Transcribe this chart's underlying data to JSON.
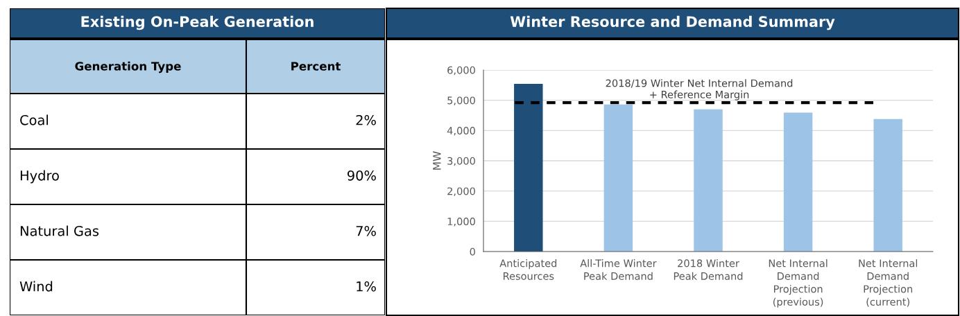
{
  "chart_data": [
    {
      "type": "other",
      "title": "Existing On-Peak Generation",
      "annotations": [
        "Generation Type",
        "Percent"
      ],
      "categories": [
        "Coal",
        "Hydro",
        "Natural Gas",
        "Wind"
      ],
      "values": [
        2,
        90,
        7,
        1
      ],
      "value_labels": [
        "2%",
        "90%",
        "7%",
        "1%"
      ]
    },
    {
      "type": "bar",
      "title": "Winter Resource and Demand Summary",
      "ylabel": "MW",
      "categories": [
        "Anticipated\nResources",
        "All-Time Winter\nPeak Demand",
        "2018 Winter\nPeak Demand",
        "Net Internal\nDemand\nProjection\n(previous)",
        "Net Internal\nDemand\nProjection\n(current)"
      ],
      "values": [
        5540,
        4860,
        4700,
        4590,
        4380
      ],
      "colors": [
        "#1f4e79",
        "#9dc3e6",
        "#9dc3e6",
        "#9dc3e6",
        "#9dc3e6"
      ],
      "ylim": [
        0,
        6000
      ],
      "yticks": [
        {
          "value": 0,
          "label": "0"
        },
        {
          "value": 1000,
          "label": "1,000"
        },
        {
          "value": 2000,
          "label": "2,000"
        },
        {
          "value": 3000,
          "label": "3,000"
        },
        {
          "value": 4000,
          "label": "4,000"
        },
        {
          "value": 5000,
          "label": "5,000"
        },
        {
          "value": 6000,
          "label": "6,000"
        }
      ],
      "grid": "y",
      "ref_lines": [
        {
          "axis": "y",
          "value": 4920,
          "label": "2018/19 Winter Net Internal Demand\n+ Reference Margin",
          "color": "#000000",
          "line_style": "dashed"
        }
      ]
    }
  ]
}
